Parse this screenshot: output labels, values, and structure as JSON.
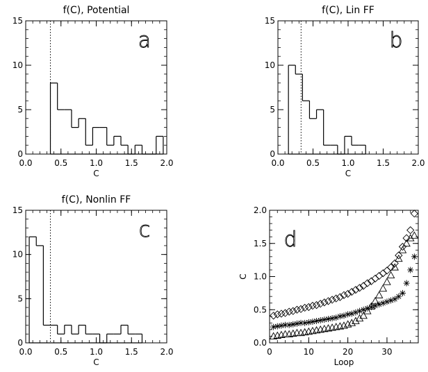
{
  "chart_data": [
    {
      "id": "a",
      "type": "histogram",
      "title": "f(C), Potential",
      "panel_label": "a",
      "xlabel": "C",
      "ylabel": "",
      "xlim": [
        0.0,
        2.0
      ],
      "ylim": [
        0,
        15
      ],
      "xticks": [
        "0.0",
        "0.5",
        "1.0",
        "1.5",
        "2.0"
      ],
      "yticks": [
        "0",
        "5",
        "10",
        "15"
      ],
      "bin_width": 0.1,
      "bins": [
        {
          "x0": 0.35,
          "count": 8
        },
        {
          "x0": 0.45,
          "count": 5
        },
        {
          "x0": 0.55,
          "count": 5
        },
        {
          "x0": 0.65,
          "count": 3
        },
        {
          "x0": 0.75,
          "count": 4
        },
        {
          "x0": 0.85,
          "count": 1
        },
        {
          "x0": 0.95,
          "count": 3
        },
        {
          "x0": 1.05,
          "count": 3
        },
        {
          "x0": 1.15,
          "count": 1
        },
        {
          "x0": 1.25,
          "count": 2
        },
        {
          "x0": 1.35,
          "count": 1
        },
        {
          "x0": 1.45,
          "count": 0
        },
        {
          "x0": 1.55,
          "count": 1
        },
        {
          "x0": 1.65,
          "count": 0
        },
        {
          "x0": 1.75,
          "count": 0
        },
        {
          "x0": 1.85,
          "count": 2
        }
      ],
      "reference_line_x": 0.35
    },
    {
      "id": "b",
      "type": "histogram",
      "title": "f(C), Lin FF",
      "panel_label": "b",
      "xlabel": "C",
      "ylabel": "",
      "xlim": [
        0.0,
        2.0
      ],
      "ylim": [
        0,
        15
      ],
      "xticks": [
        "0.0",
        "0.5",
        "1.0",
        "1.5",
        "2.0"
      ],
      "yticks": [
        "0",
        "5",
        "10",
        "15"
      ],
      "bin_width": 0.1,
      "bins": [
        {
          "x0": 0.15,
          "count": 10
        },
        {
          "x0": 0.25,
          "count": 9
        },
        {
          "x0": 0.35,
          "count": 6
        },
        {
          "x0": 0.45,
          "count": 4
        },
        {
          "x0": 0.55,
          "count": 5
        },
        {
          "x0": 0.65,
          "count": 1
        },
        {
          "x0": 0.75,
          "count": 1
        },
        {
          "x0": 0.85,
          "count": 0
        },
        {
          "x0": 0.95,
          "count": 2
        },
        {
          "x0": 1.05,
          "count": 1
        },
        {
          "x0": 1.15,
          "count": 1
        }
      ],
      "reference_line_x": 0.33
    },
    {
      "id": "c",
      "type": "histogram",
      "title": "f(C), Nonlin FF",
      "panel_label": "c",
      "xlabel": "C",
      "ylabel": "",
      "xlim": [
        0.0,
        2.0
      ],
      "ylim": [
        0,
        15
      ],
      "xticks": [
        "0.0",
        "0.5",
        "1.0",
        "1.5",
        "2.0"
      ],
      "yticks": [
        "0",
        "5",
        "10",
        "15"
      ],
      "bin_width": 0.1,
      "bins": [
        {
          "x0": 0.05,
          "count": 12
        },
        {
          "x0": 0.15,
          "count": 11
        },
        {
          "x0": 0.25,
          "count": 2
        },
        {
          "x0": 0.35,
          "count": 2
        },
        {
          "x0": 0.45,
          "count": 1
        },
        {
          "x0": 0.55,
          "count": 2
        },
        {
          "x0": 0.65,
          "count": 1
        },
        {
          "x0": 0.75,
          "count": 2
        },
        {
          "x0": 0.85,
          "count": 1
        },
        {
          "x0": 0.95,
          "count": 1
        },
        {
          "x0": 1.05,
          "count": 0
        },
        {
          "x0": 1.15,
          "count": 1
        },
        {
          "x0": 1.25,
          "count": 1
        },
        {
          "x0": 1.35,
          "count": 2
        },
        {
          "x0": 1.45,
          "count": 1
        },
        {
          "x0": 1.55,
          "count": 1
        }
      ],
      "reference_line_x": 0.35
    },
    {
      "id": "d",
      "type": "scatter",
      "title": "",
      "panel_label": "d",
      "xlabel": "Loop",
      "ylabel": "C",
      "xlim": [
        0,
        38
      ],
      "ylim": [
        0.0,
        2.0
      ],
      "xticks": [
        "0",
        "10",
        "20",
        "30"
      ],
      "xtick_values": [
        0,
        10,
        20,
        30
      ],
      "yticks": [
        "0.0",
        "0.5",
        "1.0",
        "1.5",
        "2.0"
      ],
      "series": [
        {
          "marker": "diamond",
          "x": [
            1,
            2,
            3,
            4,
            5,
            6,
            7,
            8,
            9,
            10,
            11,
            12,
            13,
            14,
            15,
            16,
            17,
            18,
            19,
            20,
            21,
            22,
            23,
            24,
            25,
            26,
            27,
            28,
            29,
            30,
            31,
            32,
            33,
            34,
            35,
            36,
            37
          ],
          "y": [
            0.41,
            0.43,
            0.44,
            0.45,
            0.47,
            0.48,
            0.5,
            0.51,
            0.53,
            0.54,
            0.56,
            0.57,
            0.59,
            0.61,
            0.63,
            0.65,
            0.67,
            0.69,
            0.72,
            0.74,
            0.77,
            0.8,
            0.83,
            0.86,
            0.9,
            0.93,
            0.97,
            1.01,
            1.05,
            1.09,
            1.14,
            1.2,
            1.32,
            1.45,
            1.58,
            1.7,
            1.95
          ]
        },
        {
          "marker": "asterisk",
          "x": [
            1,
            2,
            3,
            4,
            5,
            6,
            7,
            8,
            9,
            10,
            11,
            12,
            13,
            14,
            15,
            16,
            17,
            18,
            19,
            20,
            21,
            22,
            23,
            24,
            25,
            26,
            27,
            28,
            29,
            30,
            31,
            32,
            33,
            34,
            35,
            36,
            37
          ],
          "y": [
            0.24,
            0.25,
            0.26,
            0.27,
            0.27,
            0.28,
            0.29,
            0.3,
            0.3,
            0.31,
            0.32,
            0.33,
            0.34,
            0.35,
            0.36,
            0.37,
            0.38,
            0.4,
            0.41,
            0.43,
            0.44,
            0.46,
            0.48,
            0.5,
            0.52,
            0.54,
            0.56,
            0.58,
            0.6,
            0.62,
            0.64,
            0.66,
            0.7,
            0.75,
            0.9,
            1.1,
            1.3
          ]
        },
        {
          "marker": "triangle",
          "x": [
            1,
            2,
            3,
            4,
            5,
            6,
            7,
            8,
            9,
            10,
            11,
            12,
            13,
            14,
            15,
            16,
            17,
            18,
            19,
            20,
            21,
            22,
            23,
            24,
            25,
            26,
            27,
            28,
            29,
            30,
            31,
            32,
            33,
            34,
            35,
            36,
            37
          ],
          "y": [
            0.1,
            0.11,
            0.12,
            0.13,
            0.13,
            0.14,
            0.15,
            0.15,
            0.16,
            0.17,
            0.18,
            0.19,
            0.2,
            0.21,
            0.22,
            0.23,
            0.24,
            0.25,
            0.26,
            0.28,
            0.3,
            0.33,
            0.37,
            0.41,
            0.48,
            0.55,
            0.63,
            0.72,
            0.82,
            0.92,
            1.02,
            1.14,
            1.27,
            1.4,
            1.5,
            1.58,
            1.62
          ]
        }
      ]
    }
  ]
}
